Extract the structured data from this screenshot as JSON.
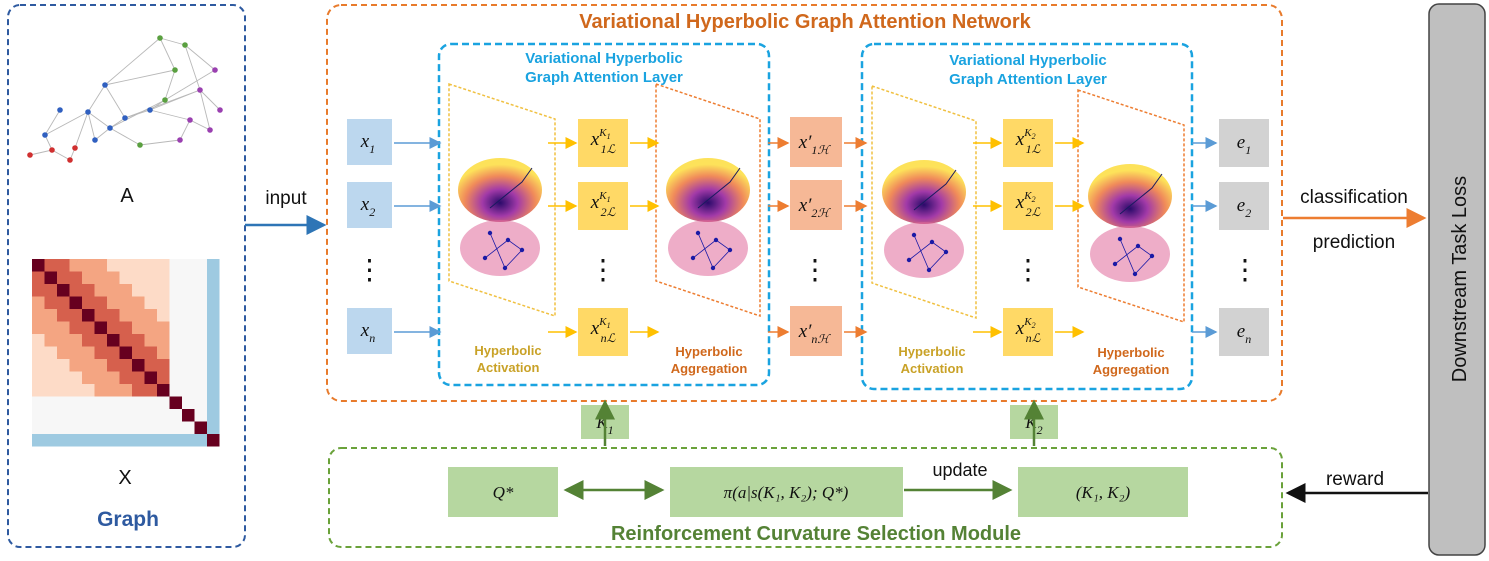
{
  "title": "Variational Hyperbolic Graph Attention Network",
  "colors": {
    "graph_border": "#2e5aa0",
    "network_border": "#e87b2c",
    "layer_border": "#1aa3e0",
    "rl_border": "#6aa23a",
    "node_blue": "#bcd7ee",
    "node_yellow": "#ffd966",
    "node_salmon": "#f6b896",
    "node_gray": "#d2d2d2",
    "node_green": "#b6d7a0",
    "loss_gray": "#bfbfbf"
  },
  "graph_panel": {
    "label_a": "A",
    "label_x": "X",
    "title": "Graph"
  },
  "connector_input": "input",
  "inputs": [
    "x",
    "x",
    "⋮",
    "x"
  ],
  "input_subs": [
    "1",
    "2",
    "",
    "n"
  ],
  "layers": [
    {
      "title_line1": "Variational Hyperbolic",
      "title_line2": "Graph Attention Layer",
      "activation_line1": "Hyperbolic",
      "activation_line2": "Activation",
      "aggregation_line1": "Hyperbolic",
      "aggregation_line2": "Aggregation",
      "curvature_sub": "1",
      "latent_subs": [
        "1",
        "2",
        "",
        "n"
      ]
    },
    {
      "title_line1": "Variational Hyperbolic",
      "title_line2": "Graph Attention Layer",
      "activation_line1": "Hyperbolic",
      "activation_line2": "Activation",
      "aggregation_line1": "Hyperbolic",
      "aggregation_line2": "Aggregation",
      "curvature_sub": "2",
      "latent_subs": [
        "1",
        "2",
        "",
        "n"
      ]
    }
  ],
  "middle_subs": [
    "1",
    "2",
    "",
    "n"
  ],
  "outputs": [
    "e",
    "e",
    "⋮",
    "e"
  ],
  "output_subs": [
    "1",
    "2",
    "",
    "n"
  ],
  "curvatures": [
    "K",
    "K"
  ],
  "curvature_subs": [
    "1",
    "2"
  ],
  "classification": "classification",
  "prediction": "prediction",
  "loss": "Downstream Task Loss",
  "rl": {
    "title": "Reinforcement  Curvature Selection Module",
    "q_star": "Q*",
    "policy": "π(a|s(K₁, K₂); Q*)",
    "update": "update",
    "k_pair": "(K₁, K₂)",
    "reward": "reward"
  }
}
